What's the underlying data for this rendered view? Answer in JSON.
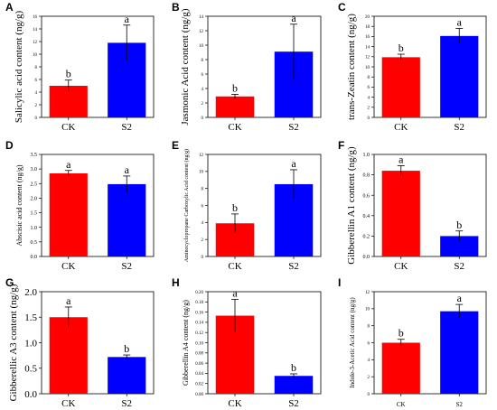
{
  "chart_data": [
    {
      "type": "bar",
      "panel": "A",
      "ylabel": "Salicylic acid content (ng/g)",
      "categories": [
        "CK",
        "S2"
      ],
      "colors": [
        "#ff0000",
        "#0000ff"
      ],
      "values": [
        5.0,
        11.8
      ],
      "errors": [
        0.9,
        2.8
      ],
      "letters": [
        "b",
        "a"
      ],
      "ylim": [
        0,
        16
      ],
      "yticks": [
        "0",
        "2",
        "4",
        "6",
        "8",
        "10",
        "12",
        "14",
        "16"
      ]
    },
    {
      "type": "bar",
      "panel": "B",
      "ylabel": "Jasmonic Acid content (ng/g)",
      "categories": [
        "CK",
        "S2"
      ],
      "colors": [
        "#ff0000",
        "#0000ff"
      ],
      "values": [
        2.9,
        9.1
      ],
      "errors": [
        0.3,
        3.8
      ],
      "letters": [
        "b",
        "a"
      ],
      "ylim": [
        0,
        14
      ],
      "yticks": [
        "0",
        "2",
        "4",
        "6",
        "8",
        "10",
        "12",
        "14"
      ]
    },
    {
      "type": "bar",
      "panel": "C",
      "ylabel": "trans-Zeatin content (ng/g)",
      "categories": [
        "CK",
        "S2"
      ],
      "colors": [
        "#ff0000",
        "#0000ff"
      ],
      "values": [
        11.9,
        16.1
      ],
      "errors": [
        0.6,
        1.5
      ],
      "letters": [
        "b",
        "a"
      ],
      "ylim": [
        0,
        20
      ],
      "yticks": [
        "0",
        "2",
        "4",
        "6",
        "8",
        "10",
        "12",
        "14",
        "16",
        "18",
        "20"
      ]
    },
    {
      "type": "bar",
      "panel": "D",
      "ylabel": "Abscisic acid content (ng/g)",
      "categories": [
        "CK",
        "S2"
      ],
      "colors": [
        "#ff0000",
        "#0000ff"
      ],
      "values": [
        2.85,
        2.48
      ],
      "errors": [
        0.1,
        0.28
      ],
      "letters": [
        "a",
        "a"
      ],
      "ylim": [
        0,
        3.5
      ],
      "yticks": [
        "0.0",
        "0.5",
        "1.0",
        "1.5",
        "2.0",
        "2.5",
        "3.0",
        "3.5"
      ]
    },
    {
      "type": "bar",
      "panel": "E",
      "ylabel": "Aminocyclopropane Carboxylic Acid content (ng/g)",
      "categories": [
        "CK",
        "S2"
      ],
      "colors": [
        "#ff0000",
        "#0000ff"
      ],
      "values": [
        3.9,
        8.5
      ],
      "errors": [
        1.1,
        1.7
      ],
      "letters": [
        "b",
        "a"
      ],
      "ylim": [
        0,
        12
      ],
      "yticks": [
        "0",
        "2",
        "4",
        "6",
        "8",
        "10",
        "12"
      ]
    },
    {
      "type": "bar",
      "panel": "F",
      "ylabel": "Gibberellin A1 content (ng/g)",
      "categories": [
        "CK",
        "S2"
      ],
      "colors": [
        "#ff0000",
        "#0000ff"
      ],
      "values": [
        0.84,
        0.2
      ],
      "errors": [
        0.05,
        0.05
      ],
      "letters": [
        "a",
        "b"
      ],
      "ylim": [
        0,
        1.0
      ],
      "yticks": [
        "0.0",
        "0.2",
        "0.4",
        "0.6",
        "0.8",
        "1.0"
      ]
    },
    {
      "type": "bar",
      "panel": "G",
      "ylabel": "Gibberellic A3 content (ng/g)",
      "categories": [
        "CK",
        "S2"
      ],
      "colors": [
        "#ff0000",
        "#0000ff"
      ],
      "values": [
        1.5,
        0.72
      ],
      "errors": [
        0.2,
        0.04
      ],
      "letters": [
        "a",
        "b"
      ],
      "ylim": [
        0,
        2.0
      ],
      "yticks": [
        "0.0",
        "0.5",
        "1.0",
        "1.5",
        "2.0"
      ]
    },
    {
      "type": "bar",
      "panel": "H",
      "ylabel": "Gibberellin A4 content (ng/g)",
      "categories": [
        "CK",
        "S2"
      ],
      "colors": [
        "#ff0000",
        "#0000ff"
      ],
      "values": [
        0.153,
        0.035
      ],
      "errors": [
        0.032,
        0.004
      ],
      "letters": [
        "a",
        "b"
      ],
      "ylim": [
        0,
        0.2
      ],
      "yticks": [
        "0.00",
        "0.02",
        "0.04",
        "0.06",
        "0.08",
        "0.10",
        "0.12",
        "0.14",
        "0.16",
        "0.18",
        "0.20"
      ]
    },
    {
      "type": "bar",
      "panel": "I",
      "ylabel": "Indole-3-Acetic Acid content (ng/g)",
      "categories": [
        "CK",
        "S2"
      ],
      "colors": [
        "#ff0000",
        "#0000ff"
      ],
      "values": [
        6.0,
        9.7
      ],
      "errors": [
        0.4,
        0.8
      ],
      "letters": [
        "b",
        "a"
      ],
      "ylim": [
        0,
        12
      ],
      "yticks": [
        "0",
        "2",
        "4",
        "6",
        "8",
        "10",
        "12"
      ]
    }
  ]
}
